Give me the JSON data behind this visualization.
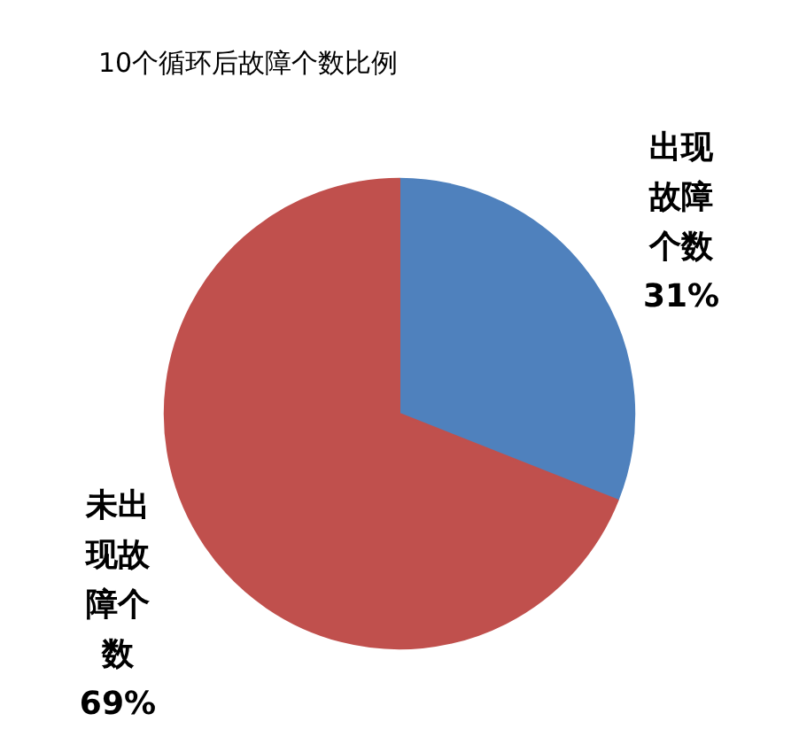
{
  "chart_data": {
    "type": "pie",
    "title": "10个循环后故障个数比例",
    "categories": [
      "出现故障个数",
      "未出现故障个数"
    ],
    "values": [
      31,
      69
    ],
    "colors": [
      "#4f81bd",
      "#c0504d"
    ],
    "value_labels": [
      "31%",
      "69%"
    ]
  }
}
